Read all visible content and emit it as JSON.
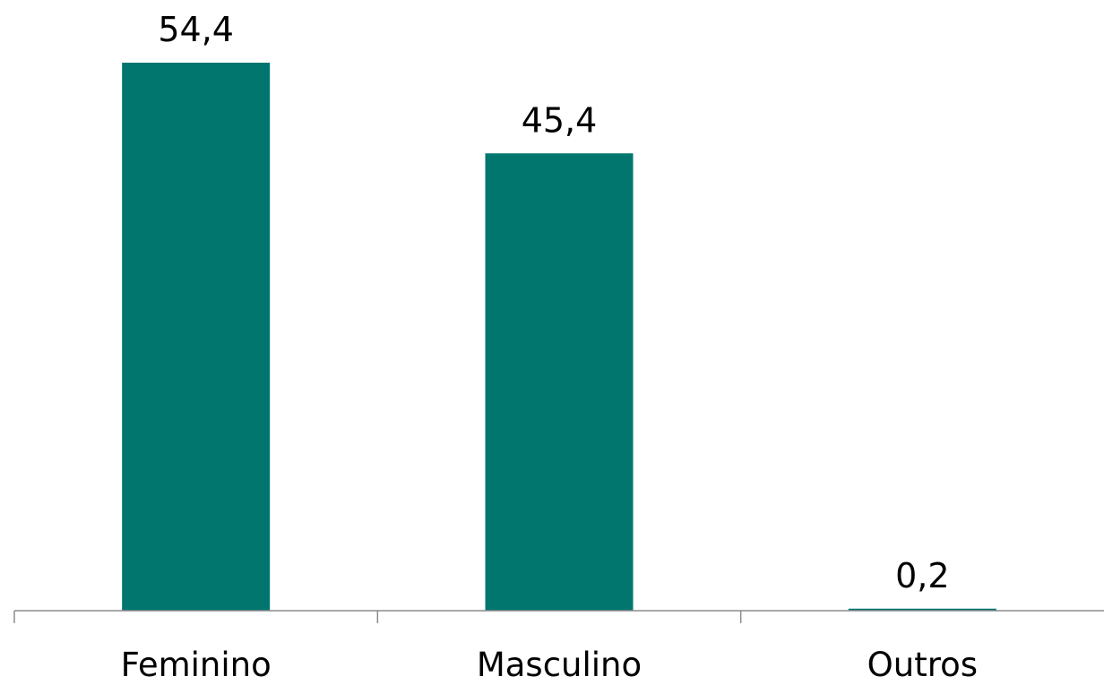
{
  "chart_data": {
    "type": "bar",
    "categories": [
      "Feminino",
      "Masculino",
      "Outros"
    ],
    "values": [
      54.4,
      45.4,
      0.2
    ],
    "value_labels": [
      "54,4",
      "45,4",
      "0,2"
    ],
    "bar_color": "#00766F",
    "axis_color": "#8C8C8C",
    "ylim": [
      0,
      60
    ],
    "grid": false,
    "legend": "none"
  }
}
